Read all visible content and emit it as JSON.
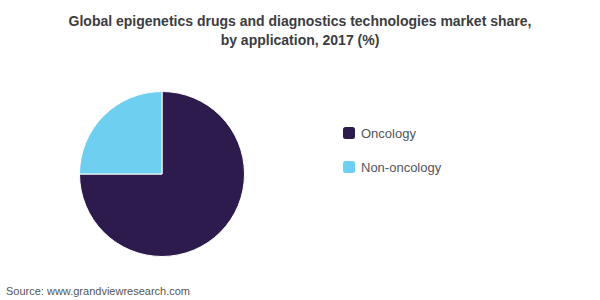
{
  "chart_data": {
    "type": "pie",
    "title": "Global epigenetics drugs and diagnostics technologies market share,\nby application, 2017 (%)",
    "categories": [
      "Oncology",
      "Non-oncology"
    ],
    "values": [
      75,
      25
    ],
    "colors": [
      "#2d1b4e",
      "#6ecff0"
    ],
    "legend": "right",
    "annotations": [
      "Source: www.grandviewresearch.com"
    ]
  }
}
